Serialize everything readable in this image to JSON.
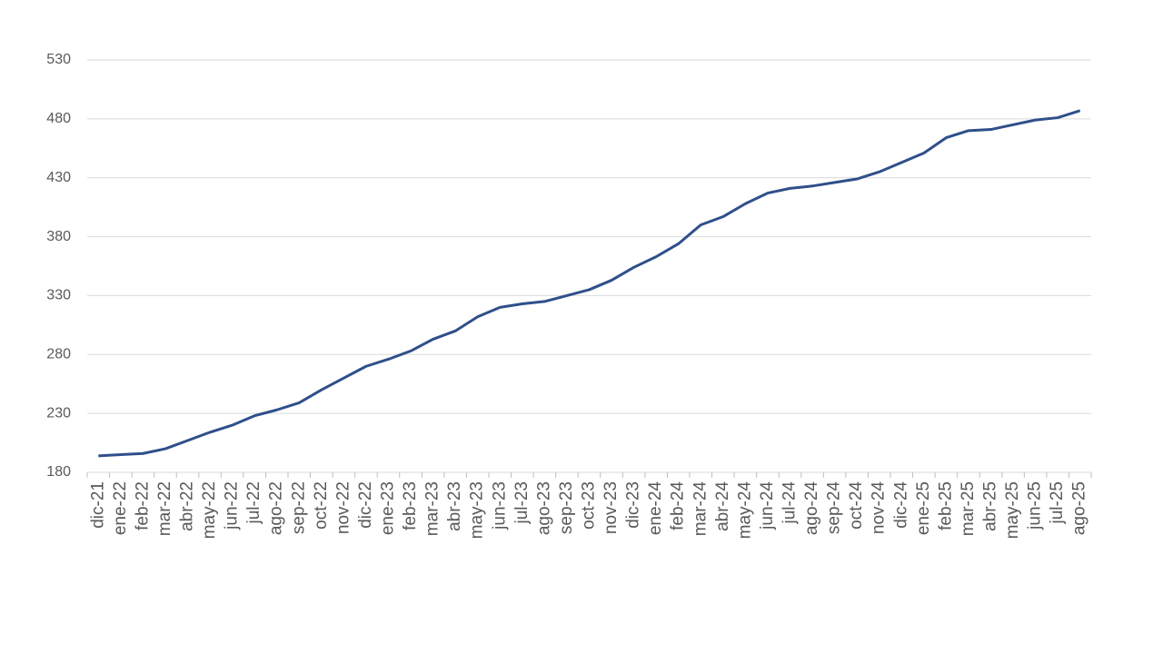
{
  "chart_data": {
    "type": "line",
    "categories": [
      "dic-21",
      "ene-22",
      "feb-22",
      "mar-22",
      "abr-22",
      "may-22",
      "jun-22",
      "jul-22",
      "ago-22",
      "sep-22",
      "oct-22",
      "nov-22",
      "dic-22",
      "ene-23",
      "feb-23",
      "mar-23",
      "abr-23",
      "may-23",
      "jun-23",
      "jul-23",
      "ago-23",
      "sep-23",
      "oct-23",
      "nov-23",
      "dic-23",
      "ene-24",
      "feb-24",
      "mar-24",
      "abr-24",
      "may-24",
      "jun-24",
      "jul-24",
      "ago-24",
      "sep-24",
      "oct-24",
      "nov-24",
      "dic-24",
      "ene-25",
      "feb-25",
      "mar-25",
      "abr-25",
      "may-25",
      "jun-25",
      "jul-25",
      "ago-25"
    ],
    "values": [
      194,
      195,
      196,
      200,
      207,
      214,
      220,
      228,
      233,
      239,
      250,
      260,
      270,
      276,
      283,
      293,
      300,
      312,
      320,
      323,
      325,
      330,
      335,
      343,
      354,
      363,
      374,
      390,
      397,
      408,
      417,
      421,
      423,
      426,
      429,
      435,
      443,
      451,
      464,
      470,
      471,
      475,
      479,
      481,
      487
    ],
    "color": "#2f4f8a",
    "ylim": [
      180,
      530
    ],
    "yticks": [
      180,
      230,
      280,
      330,
      380,
      430,
      480,
      530
    ],
    "grid": true
  }
}
